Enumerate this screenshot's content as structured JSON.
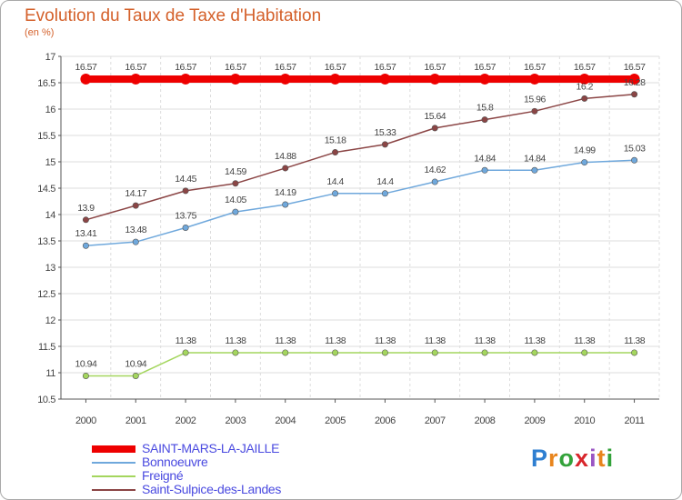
{
  "title": "Evolution du Taux de Taxe d'Habitation",
  "unit_label": "(en %)",
  "logo_text": [
    "P",
    "r",
    "o",
    "x",
    "i",
    "t",
    "i"
  ],
  "logo_colors": [
    "#2f7fd1",
    "#e8851d",
    "#33a23a",
    "#d8262c",
    "#9a55c4",
    "#e8851d",
    "#33a23a"
  ],
  "chart_data": {
    "type": "line",
    "x": [
      "2000",
      "2001",
      "2002",
      "2003",
      "2004",
      "2005",
      "2006",
      "2007",
      "2008",
      "2009",
      "2010",
      "2011"
    ],
    "ylim": [
      10.5,
      17
    ],
    "yticks": [
      "17",
      "16.5",
      "16",
      "15.5",
      "15",
      "14.5",
      "14",
      "13.5",
      "13",
      "12.5",
      "12",
      "11.5",
      "11",
      "10.5"
    ],
    "grid": true,
    "legend_position": "bottom-left",
    "series": [
      {
        "name": "SAINT-MARS-LA-JAILLE",
        "color": "#ee0000",
        "values": [
          16.57,
          16.57,
          16.57,
          16.57,
          16.57,
          16.57,
          16.57,
          16.57,
          16.57,
          16.57,
          16.57,
          16.57
        ],
        "labels": [
          "16.57",
          "16.57",
          "16.57",
          "16.57",
          "16.57",
          "16.57",
          "16.57",
          "16.57",
          "16.57",
          "16.57",
          "16.57",
          "16.57"
        ]
      },
      {
        "name": "Bonnoeuvre",
        "color": "#6fa8dc",
        "values": [
          13.41,
          13.48,
          13.75,
          14.05,
          14.19,
          14.4,
          14.4,
          14.62,
          14.84,
          14.84,
          14.99,
          15.03
        ],
        "labels": [
          "13.41",
          "13.48",
          "13.75",
          "14.05",
          "14.19",
          "14.4",
          "14.4",
          "14.62",
          "14.84",
          "14.84",
          "14.99",
          "15.03"
        ]
      },
      {
        "name": "Freigné",
        "color": "#a4d65e",
        "values": [
          10.94,
          10.94,
          11.38,
          11.38,
          11.38,
          11.38,
          11.38,
          11.38,
          11.38,
          11.38,
          11.38,
          11.38
        ],
        "labels": [
          "10.94",
          "10.94",
          "11.38",
          "11.38",
          "11.38",
          "11.38",
          "11.38",
          "11.38",
          "11.38",
          "11.38",
          "11.38",
          "11.38"
        ]
      },
      {
        "name": "Saint-Sulpice-des-Landes",
        "color": "#8b4545",
        "values": [
          13.9,
          14.17,
          14.45,
          14.59,
          14.88,
          15.18,
          15.33,
          15.64,
          15.8,
          15.96,
          16.2,
          16.28
        ],
        "labels": [
          "13.9",
          "14.17",
          "14.45",
          "14.59",
          "14.88",
          "15.18",
          "15.33",
          "15.64",
          "15.8",
          "15.96",
          "16.2",
          "16.28"
        ]
      }
    ]
  }
}
